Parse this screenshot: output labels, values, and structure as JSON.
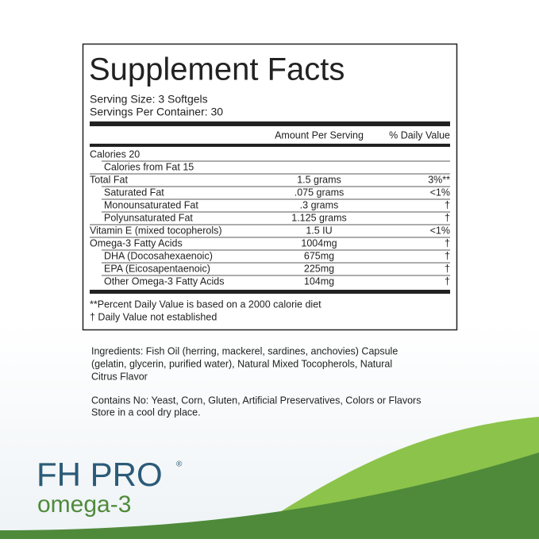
{
  "label": {
    "title": "Supplement Facts",
    "serving_size": "Serving Size: 3 Softgels",
    "servings_per_container": "Servings Per Container: 30",
    "columns": [
      "Amount Per Serving",
      "% Daily Value"
    ],
    "rows": [
      {
        "name": "Calories 20",
        "amount": null,
        "dv": null,
        "indent": false
      },
      {
        "name": "Calories from Fat 15",
        "amount": null,
        "dv": null,
        "indent": true
      },
      {
        "name": "Total Fat",
        "amount": "1.5 grams",
        "dv": "3%**",
        "indent": false
      },
      {
        "name": "Saturated Fat",
        "amount": ".075 grams",
        "dv": "<1%",
        "indent": true
      },
      {
        "name": "Monounsaturated Fat",
        "amount": ".3 grams",
        "dv": "†",
        "indent": true
      },
      {
        "name": "Polyunsaturated Fat",
        "amount": "1.125 grams",
        "dv": "†",
        "indent": true
      },
      {
        "name": "Vitamin E (mixed tocopherols)",
        "amount": "1.5 IU",
        "dv": "<1%",
        "indent": false
      },
      {
        "name": "Omega-3 Fatty Acids",
        "amount": "1004mg",
        "dv": "†",
        "indent": false
      },
      {
        "name": "DHA (Docosahexaenoic)",
        "amount": "675mg",
        "dv": "†",
        "indent": true
      },
      {
        "name": "EPA (Eicosapentaenoic)",
        "amount": "225mg",
        "dv": "†",
        "indent": true
      },
      {
        "name": "Other Omega-3 Fatty Acids",
        "amount": "104mg",
        "dv": "†",
        "indent": true
      }
    ],
    "footnotes": [
      "**Percent Daily Value is based on a 2000 calorie diet",
      "† Daily Value not established"
    ]
  },
  "ingredients": [
    "Ingredients: Fish Oil (herring, mackerel, sardines, anchovies) Capsule",
    "(gelatin, glycerin, purified water), Natural Mixed Tocopherols, Natural",
    "Citrus Flavor"
  ],
  "contains": "Contains No: Yeast, Corn, Gluten, Artificial Preservatives, Colors or Flavors",
  "storage": "Store in a cool dry place.",
  "brand": {
    "name": "FH PRO",
    "mark": "®",
    "product": "omega-3"
  }
}
